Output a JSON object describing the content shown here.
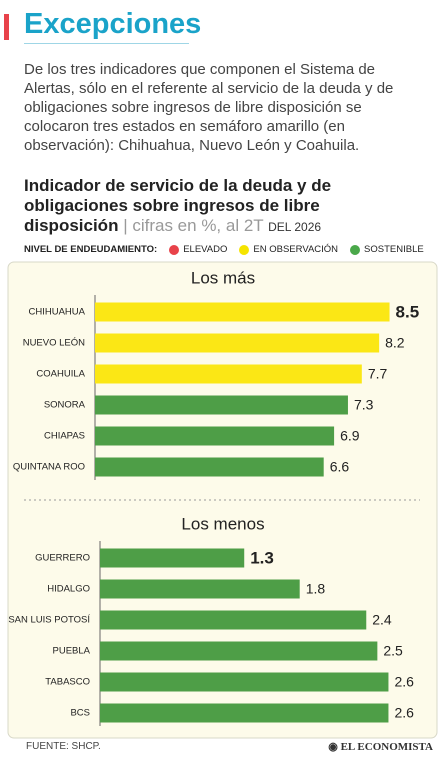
{
  "header": {
    "title": "Excepciones",
    "text": "De los tres indicadores que componen el Sistema de Alertas, sólo en el referente al servicio de la deuda y de obligaciones sobre ingresos de libre disposición se colocaron tres estados en semáforo amarillo (en observación): Chihuahua, Nuevo León y Coahuila."
  },
  "figure": {
    "title": "Indicador de servicio de la deuda y de obligaciones sobre ingresos de libre disposición",
    "subtitle": "| cifras en %, al 2T",
    "period": "DEL 2026"
  },
  "legend": {
    "label": "NIVEL DE ENDEUDAMIENTO:",
    "items": [
      {
        "name": "ELEVADO",
        "color": "#e8424a"
      },
      {
        "name": "EN OBSERVACIÓN",
        "color": "#f5e400"
      },
      {
        "name": "SOSTENIBLE",
        "color": "#4aa84a"
      }
    ]
  },
  "chart_data": [
    {
      "type": "bar",
      "orientation": "horizontal",
      "title": "Los más",
      "categories": [
        "CHIHUAHUA",
        "NUEVO LEÓN",
        "COAHUILA",
        "SONORA",
        "CHIAPAS",
        "QUINTANA ROO"
      ],
      "values": [
        8.5,
        8.2,
        7.7,
        7.3,
        6.9,
        6.6
      ],
      "colors": [
        "#fbe715",
        "#fbe715",
        "#fbe715",
        "#4e9e47",
        "#4e9e47",
        "#4e9e47"
      ],
      "xlim": [
        0,
        8.6
      ]
    },
    {
      "type": "bar",
      "orientation": "horizontal",
      "title": "Los menos",
      "categories": [
        "GUERRERO",
        "HIDALGO",
        "SAN LUIS POTOSÍ",
        "PUEBLA",
        "TABASCO",
        "BCS"
      ],
      "values": [
        1.3,
        1.8,
        2.4,
        2.5,
        2.6,
        2.6
      ],
      "colors": [
        "#4e9e47",
        "#4e9e47",
        "#4e9e47",
        "#4e9e47",
        "#4e9e47",
        "#4e9e47"
      ],
      "xlim": [
        0,
        2.65
      ]
    }
  ],
  "source": "FUENTE: SHCP.",
  "brand": "EL ECONOMISTA"
}
